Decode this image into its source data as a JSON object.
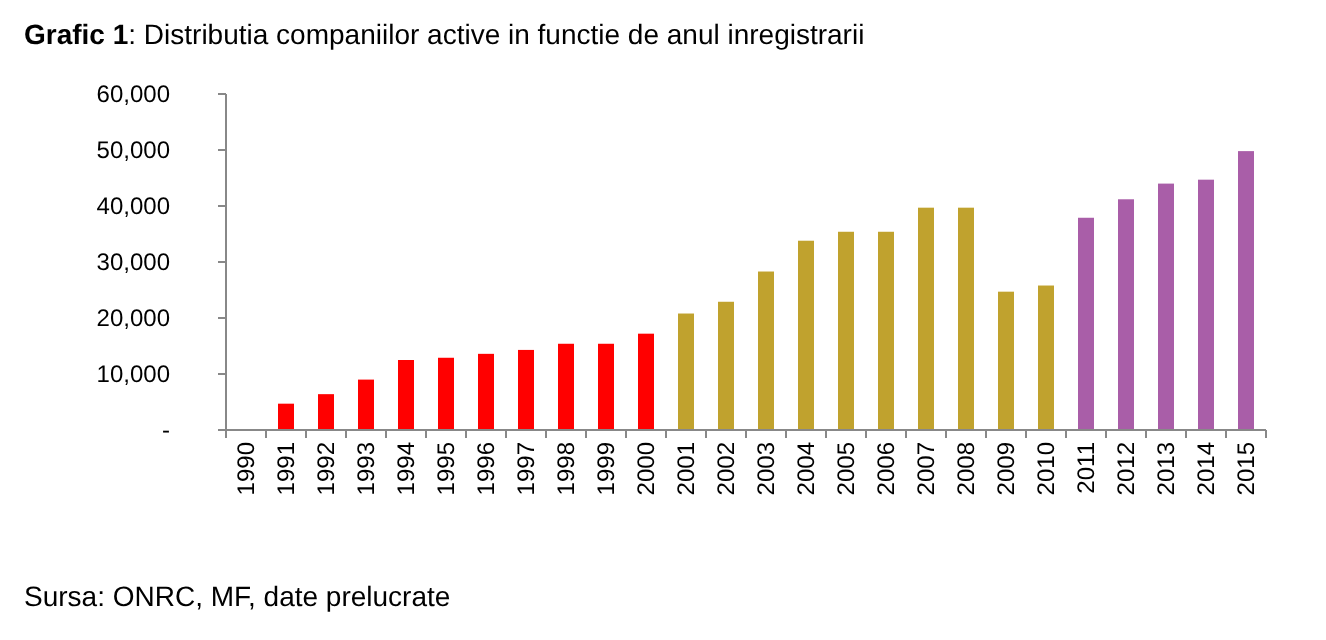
{
  "chart_data": {
    "type": "bar",
    "title": "Grafic 1: Distributia companiilor active in functie de anul inregistrarii",
    "categories": [
      "1990",
      "1991",
      "1992",
      "1993",
      "1994",
      "1995",
      "1996",
      "1997",
      "1998",
      "1999",
      "2000",
      "2001",
      "2002",
      "2003",
      "2004",
      "2005",
      "2006",
      "2007",
      "2008",
      "2009",
      "2010",
      "2011",
      "2012",
      "2013",
      "2014",
      "2015"
    ],
    "values": [
      0,
      4700,
      6400,
      9000,
      12500,
      12900,
      13600,
      14300,
      15400,
      15400,
      17200,
      20800,
      22900,
      28300,
      33800,
      35400,
      35400,
      39700,
      39700,
      24700,
      25800,
      37900,
      41200,
      44000,
      44700,
      49800
    ],
    "colors": [
      "#ff0000",
      "#ff0000",
      "#ff0000",
      "#ff0000",
      "#ff0000",
      "#ff0000",
      "#ff0000",
      "#ff0000",
      "#ff0000",
      "#ff0000",
      "#ff0000",
      "#c0a22e",
      "#c0a22e",
      "#c0a22e",
      "#c0a22e",
      "#c0a22e",
      "#c0a22e",
      "#c0a22e",
      "#c0a22e",
      "#c0a22e",
      "#c0a22e",
      "#a95ea8",
      "#a95ea8",
      "#a95ea8",
      "#a95ea8",
      "#a95ea8"
    ],
    "ylim": [
      0,
      60000
    ],
    "yticks": [
      {
        "value": 0,
        "label": "-"
      },
      {
        "value": 10000,
        "label": "10,000"
      },
      {
        "value": 20000,
        "label": "20,000"
      },
      {
        "value": 30000,
        "label": "30,000"
      },
      {
        "value": 40000,
        "label": "40,000"
      },
      {
        "value": 50000,
        "label": "50,000"
      },
      {
        "value": 60000,
        "label": "60,000"
      }
    ],
    "annotations": [
      "Sursa: ONRC, MF, date prelucrate"
    ]
  }
}
